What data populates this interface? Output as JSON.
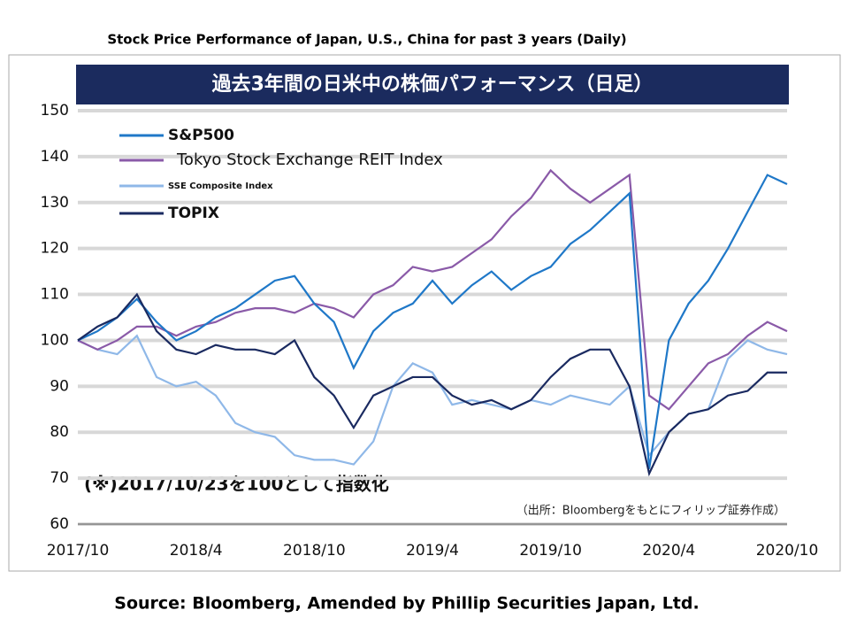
{
  "chart_data": {
    "type": "line",
    "title": "Stock Price Performance of Japan, U.S., China for past 3 years (Daily)",
    "banner": "過去3年間の日米中の株価パフォーマンス（日足）",
    "annotations": [
      "(※)2017/10/23を100として指数化",
      "（出所：Bloombergをもとにフィリップ証券作成）"
    ],
    "source": "Source: Bloomberg, Amended by Phillip Securities Japan, Ltd.",
    "categories": [
      "2017/10",
      null,
      null,
      null,
      null,
      null,
      "2018/4",
      null,
      null,
      null,
      null,
      null,
      "2018/10",
      null,
      null,
      null,
      null,
      null,
      "2019/4",
      null,
      null,
      null,
      null,
      null,
      "2019/10",
      null,
      null,
      null,
      null,
      null,
      "2020/4",
      null,
      null,
      null,
      null,
      null,
      "2020/10"
    ],
    "series": [
      {
        "name": "S&P500",
        "color": "#1f78c8",
        "values": [
          100,
          102,
          105,
          109,
          104,
          100,
          102,
          105,
          107,
          110,
          113,
          114,
          108,
          104,
          94,
          102,
          106,
          108,
          113,
          108,
          112,
          115,
          111,
          114,
          116,
          121,
          124,
          128,
          132,
          72,
          100,
          108,
          113,
          120,
          128,
          136,
          134
        ]
      },
      {
        "name": "Tokyo Stock Exchange REIT Index",
        "color": "#8a5aa8",
        "values": [
          100,
          98,
          100,
          103,
          103,
          101,
          103,
          104,
          106,
          107,
          107,
          106,
          108,
          107,
          105,
          110,
          112,
          116,
          115,
          116,
          119,
          122,
          127,
          131,
          137,
          133,
          130,
          133,
          136,
          88,
          85,
          90,
          95,
          97,
          101,
          104,
          102
        ]
      },
      {
        "name": "SSE Composite Index",
        "color": "#8fb8e8",
        "values": [
          100,
          98,
          97,
          101,
          92,
          90,
          91,
          88,
          82,
          80,
          79,
          75,
          74,
          74,
          73,
          78,
          90,
          95,
          93,
          86,
          87,
          86,
          85,
          87,
          86,
          88,
          87,
          86,
          90,
          75,
          80,
          84,
          85,
          96,
          100,
          98,
          97
        ]
      },
      {
        "name": "TOPIX",
        "color": "#1a2a60",
        "values": [
          100,
          103,
          105,
          110,
          102,
          98,
          97,
          99,
          98,
          98,
          97,
          100,
          92,
          88,
          81,
          88,
          90,
          92,
          92,
          88,
          86,
          87,
          85,
          87,
          92,
          96,
          98,
          98,
          90,
          71,
          80,
          84,
          85,
          88,
          89,
          93,
          93
        ]
      }
    ],
    "ylim": [
      60,
      150
    ],
    "yticks": [
      60,
      70,
      80,
      90,
      100,
      110,
      120,
      130,
      140,
      150
    ],
    "grid": true
  }
}
